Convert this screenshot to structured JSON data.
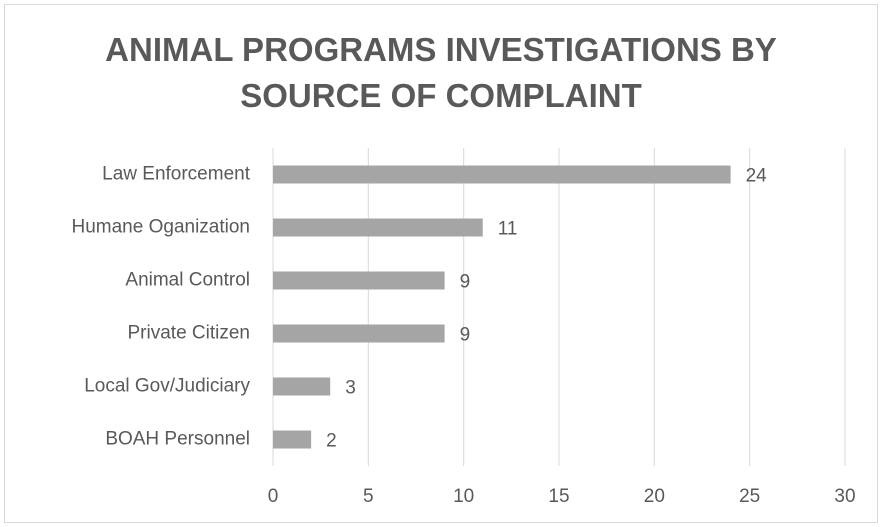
{
  "chart_data": {
    "type": "bar",
    "orientation": "horizontal",
    "title": "ANIMAL PROGRAMS INVESTIGATIONS BY SOURCE OF COMPLAINT",
    "categories": [
      "Law Enforcement",
      "Humane Oganization",
      "Animal Control",
      "Private Citizen",
      "Local Gov/Judiciary",
      "BOAH Personnel"
    ],
    "values": [
      24,
      11,
      9,
      9,
      3,
      2
    ],
    "color": "#a5a5a5",
    "xlim": [
      0,
      30
    ],
    "xticks": [
      0,
      5,
      10,
      15,
      20,
      25,
      30
    ],
    "grid": true,
    "data_labels": true
  }
}
